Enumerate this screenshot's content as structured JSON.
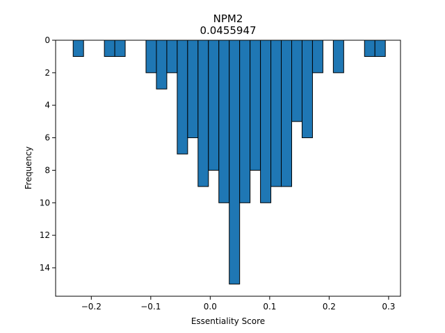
{
  "chart_data": {
    "type": "bar",
    "title": "NPM2",
    "subtitle": "0.0455947",
    "xlabel": "Essentiality Score",
    "ylabel": "Frequency",
    "y_inverted": true,
    "xlim": [
      -0.26,
      0.32
    ],
    "ylim": [
      0,
      15.75
    ],
    "bin_width": 0.0175,
    "x_ticks": [
      -0.2,
      -0.1,
      0.0,
      0.1,
      0.2,
      0.3
    ],
    "x_tick_labels": [
      "−0.2",
      "−0.1",
      "0.0",
      "0.1",
      "0.2",
      "0.3"
    ],
    "y_ticks": [
      0,
      2,
      4,
      6,
      8,
      10,
      12,
      14
    ],
    "y_tick_labels": [
      "0",
      "2",
      "4",
      "6",
      "8",
      "10",
      "12",
      "14"
    ],
    "bar_color": "#1f77b4",
    "edge_color": "#000000",
    "bins": [
      {
        "x0": -0.2305,
        "value": 1
      },
      {
        "x0": -0.178,
        "value": 1
      },
      {
        "x0": -0.1605,
        "value": 1
      },
      {
        "x0": -0.108,
        "value": 2
      },
      {
        "x0": -0.0905,
        "value": 3
      },
      {
        "x0": -0.073,
        "value": 2
      },
      {
        "x0": -0.0555,
        "value": 7
      },
      {
        "x0": -0.038,
        "value": 6
      },
      {
        "x0": -0.0205,
        "value": 9
      },
      {
        "x0": -0.003,
        "value": 8
      },
      {
        "x0": 0.0145,
        "value": 10
      },
      {
        "x0": 0.032,
        "value": 15
      },
      {
        "x0": 0.0495,
        "value": 10
      },
      {
        "x0": 0.067,
        "value": 8
      },
      {
        "x0": 0.0845,
        "value": 10
      },
      {
        "x0": 0.102,
        "value": 9
      },
      {
        "x0": 0.1195,
        "value": 9
      },
      {
        "x0": 0.137,
        "value": 5
      },
      {
        "x0": 0.1545,
        "value": 6
      },
      {
        "x0": 0.172,
        "value": 2
      },
      {
        "x0": 0.207,
        "value": 2
      },
      {
        "x0": 0.2595,
        "value": 1
      },
      {
        "x0": 0.277,
        "value": 1
      }
    ]
  }
}
